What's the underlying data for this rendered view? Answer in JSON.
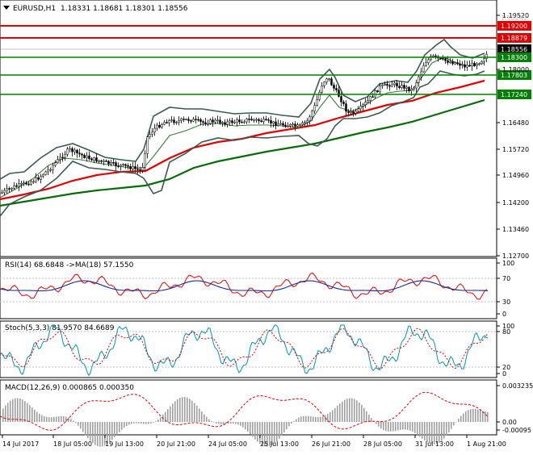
{
  "header": {
    "symbol_label": "EURUSD,H1",
    "ohlc": "1.18331 1.18681 1.18301 1.18556"
  },
  "price_axis": {
    "ticks": [
      "1.19520",
      "1.18000",
      "1.16480",
      "1.15720",
      "1.14960",
      "1.14200",
      "1.13460",
      "1.12700"
    ],
    "faint_label": "1.18241"
  },
  "levels": [
    {
      "label": "1.19200",
      "color": "#e00000",
      "kind": "resistance"
    },
    {
      "label": "1.18879",
      "color": "#e00000",
      "kind": "resistance"
    },
    {
      "label": "1.18556",
      "color": "#000000",
      "kind": "current"
    },
    {
      "label": "1.18300",
      "color": "#008000",
      "kind": "support"
    },
    {
      "label": "1.17803",
      "color": "#008000",
      "kind": "support"
    },
    {
      "label": "1.17240",
      "color": "#008000",
      "kind": "support"
    }
  ],
  "rsi": {
    "label": "RSI(14) 68.6848 ->MA(18) 57.1550",
    "axis": [
      "100",
      "70",
      "30",
      "0"
    ]
  },
  "stoch": {
    "label": "Stoch(5,3,3) 81.9570 84.6689",
    "axis": [
      "100",
      "80",
      "20",
      "0"
    ]
  },
  "macd": {
    "label": "MACD(12,26,9) 0.000865 0.000350",
    "axis": [
      "0.003235",
      "0.00",
      "-0.00095"
    ]
  },
  "time_axis": [
    "14 Jul 2017",
    "18 Jul 05:00",
    "19 Jul 13:00",
    "20 Jul 21:00",
    "24 Jul 05:00",
    "25 Jul 13:00",
    "26 Jul 21:00",
    "28 Jul 05:00",
    "31 Jul 13:00",
    "1 Aug 21:00"
  ],
  "colors": {
    "resistance": "#e00000",
    "support": "#008000",
    "ma_fast": "#e00000",
    "ma_slow": "#0a6b0a",
    "bollinger": "#3c5a50",
    "rsi_line": "#e00000",
    "rsi_ma": "#1a2a8c",
    "stoch_main": "#0097a7",
    "stoch_signal": "#e00000",
    "macd_hist": "#a0a0a0",
    "macd_signal": "#e00000"
  }
}
